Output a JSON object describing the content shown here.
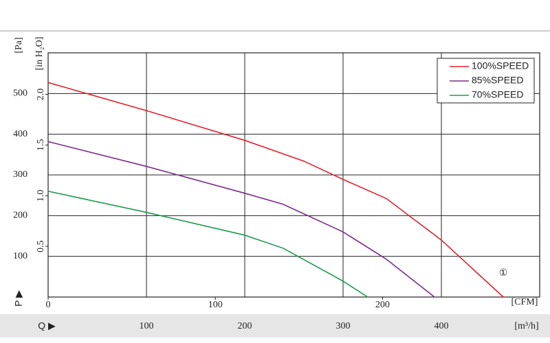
{
  "chart_data": {
    "type": "line",
    "y_label": "[Pa]",
    "y2_label": "[in H₂O]",
    "x_label": "[m³/h]",
    "x2_label": "[CFM]",
    "p_label": "P ▶",
    "q_label": "Q ▶",
    "annotation": "①",
    "xlim": [
      0,
      500
    ],
    "xticks": [
      100,
      200,
      300,
      400
    ],
    "x2lim": [
      0,
      294
    ],
    "x2ticks": [
      0,
      100,
      200
    ],
    "ylim": [
      0,
      600
    ],
    "yticks": [
      100,
      200,
      300,
      400,
      500
    ],
    "y2lim": [
      0,
      2.41
    ],
    "y2ticks": [
      0.5,
      {
        "value": 1,
        "label": "1.0"
      },
      1.5,
      {
        "value": 2,
        "label": "2.0"
      }
    ],
    "grid": true,
    "legend": "upper right",
    "series": [
      {
        "name": "100%SPEED",
        "color": "#e3202b",
        "x": [
          0,
          100,
          200,
          260,
          300,
          344,
          400,
          463
        ],
        "values": [
          527,
          458,
          385,
          334,
          289,
          242,
          140,
          0
        ]
      },
      {
        "name": "85%SPEED",
        "color": "#7a2a8e",
        "x": [
          0,
          100,
          200,
          239,
          300,
          344,
          393
        ],
        "values": [
          382,
          321,
          255,
          228,
          160,
          93,
          0
        ]
      },
      {
        "name": "70%SPEED",
        "color": "#1a9a4a",
        "x": [
          0,
          100,
          200,
          239,
          300,
          325
        ],
        "values": [
          260,
          208,
          152,
          120,
          39,
          0
        ]
      }
    ]
  }
}
